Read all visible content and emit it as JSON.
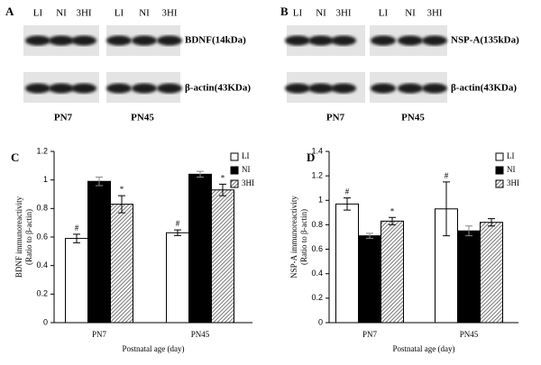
{
  "blots": [
    {
      "label": "A",
      "lanes": [
        "LI",
        "NI",
        "3HI",
        "LI",
        "NI",
        "3HI"
      ],
      "bands": [
        "BDNF(14kDa)",
        "β-actin(43KDa)"
      ],
      "ages": [
        "PN7",
        "PN45"
      ]
    },
    {
      "label": "B",
      "lanes": [
        "LI",
        "NI",
        "3HI",
        "LI",
        "NI",
        "3HI"
      ],
      "bands": [
        "NSP-A(135kDa)",
        "β-actin(43KDa)"
      ],
      "ages": [
        "PN7",
        "PN45"
      ]
    }
  ],
  "chart_data": [
    {
      "type": "bar",
      "label": "C",
      "ylabel": [
        "BDNF immunoreactivity",
        "(Ratio to β-actin)"
      ],
      "xlabel": "Postnatal age (day)",
      "categories": [
        "PN7",
        "PN45"
      ],
      "ylim": [
        0,
        1.2
      ],
      "yticks": [
        0,
        0.2,
        0.4,
        0.6,
        0.8,
        1,
        1.2
      ],
      "series": [
        {
          "name": "LI",
          "color": "#ffffff",
          "values": [
            0.59,
            0.63
          ],
          "errors": [
            0.03,
            0.02
          ],
          "markers": [
            "#",
            "#"
          ]
        },
        {
          "name": "NI",
          "color": "#000000",
          "values": [
            0.99,
            1.04
          ],
          "errors": [
            0.03,
            0.02
          ],
          "markers": [
            null,
            null
          ]
        },
        {
          "name": "3HI",
          "color": "#555555",
          "hatch": true,
          "values": [
            0.83,
            0.93
          ],
          "errors": [
            0.06,
            0.04
          ],
          "markers": [
            "*",
            "*"
          ]
        }
      ]
    },
    {
      "type": "bar",
      "label": "D",
      "ylabel": [
        "NSP-A immunoreactivity",
        "(Ratio to β-actin)"
      ],
      "xlabel": "Postnatal age (day)",
      "categories": [
        "PN7",
        "PN45"
      ],
      "ylim": [
        0,
        1.4
      ],
      "yticks": [
        0,
        0.2,
        0.4,
        0.6,
        0.8,
        1,
        1.2,
        1.4
      ],
      "series": [
        {
          "name": "LI",
          "color": "#ffffff",
          "values": [
            0.97,
            0.93
          ],
          "errors": [
            0.05,
            0.22
          ],
          "markers": [
            "#",
            "#"
          ]
        },
        {
          "name": "NI",
          "color": "#000000",
          "values": [
            0.71,
            0.75
          ],
          "errors": [
            0.02,
            0.04
          ],
          "markers": [
            null,
            null
          ]
        },
        {
          "name": "3HI",
          "color": "#555555",
          "hatch": true,
          "values": [
            0.83,
            0.82
          ],
          "errors": [
            0.03,
            0.03
          ],
          "markers": [
            "*",
            null
          ]
        }
      ]
    }
  ]
}
